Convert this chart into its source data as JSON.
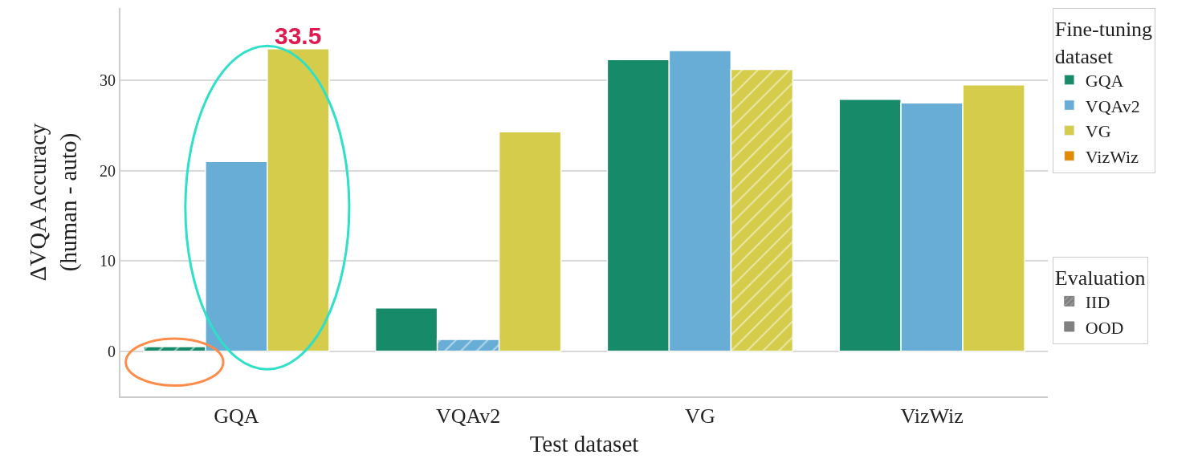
{
  "chart_data": {
    "type": "bar",
    "xlabel": "Test dataset",
    "ylabel": "ΔVQA Accuracy\n(human - auto)",
    "legend_title": "Fine-tuning dataset",
    "categories": [
      "GQA",
      "VQAv2",
      "VG",
      "VizWiz"
    ],
    "series": [
      {
        "name": "GQA",
        "color": "#178a6a",
        "values": [
          0.5,
          4.8,
          32.3,
          27.9
        ]
      },
      {
        "name": "VQAv2",
        "color": "#67add6",
        "values": [
          21.0,
          1.3,
          33.3,
          27.5
        ]
      },
      {
        "name": "VG",
        "color": "#d4cc4a",
        "values": [
          33.5,
          24.3,
          31.2,
          29.5
        ]
      },
      {
        "name": "VizWiz",
        "color": "#e08a00",
        "values": [
          null,
          null,
          null,
          null
        ]
      },
      {
        "name": "IID",
        "color": "#808080",
        "values": [
          null,
          null,
          null,
          null
        ]
      },
      {
        "name": "OOD",
        "color": "#808080",
        "values": [
          null,
          null,
          null,
          null
        ]
      }
    ],
    "annotations": [
      "33.5",
      "Evaluation"
    ],
    "ylim": [
      -5,
      38
    ],
    "yticks": [
      0,
      10,
      20,
      30
    ],
    "grid": "y",
    "legend": "right"
  }
}
